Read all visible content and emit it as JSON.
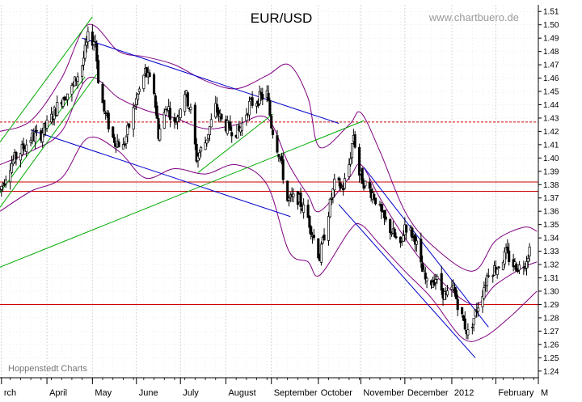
{
  "chart_data": {
    "type": "candlestick",
    "title": "EUR/USD",
    "watermark": "www.chartbuero.de",
    "credit": "Hoppenstedt Charts",
    "xlabel": "",
    "ylabel": "",
    "ylim": [
      1.235,
      1.515
    ],
    "grid": true,
    "y_axis_side": "right",
    "y_ticks": [
      "1.24",
      "1.25",
      "1.26",
      "1.27",
      "1.28",
      "1.29",
      "1.30",
      "1.31",
      "1.32",
      "1.33",
      "1.34",
      "1.35",
      "1.36",
      "1.37",
      "1.38",
      "1.39",
      "1.40",
      "1.41",
      "1.42",
      "1.43",
      "1.44",
      "1.45",
      "1.46",
      "1.47",
      "1.48",
      "1.49",
      "1.50",
      "1.51"
    ],
    "x_tick_labels": [
      {
        "label": "rch",
        "date": "2011-03-01"
      },
      {
        "label": "April",
        "date": "2011-04-01"
      },
      {
        "label": "May",
        "date": "2011-05-02"
      },
      {
        "label": "June",
        "date": "2011-06-01"
      },
      {
        "label": "July",
        "date": "2011-07-01"
      },
      {
        "label": "August",
        "date": "2011-08-01"
      },
      {
        "label": "September",
        "date": "2011-09-01"
      },
      {
        "label": "October",
        "date": "2011-10-03"
      },
      {
        "label": "November",
        "date": "2011-11-01"
      },
      {
        "label": "December",
        "date": "2011-12-01"
      },
      {
        "label": "2012",
        "date": "2012-01-02"
      },
      {
        "label": "February",
        "date": "2012-02-01"
      },
      {
        "label": "M",
        "date": "2012-03-01"
      }
    ],
    "x_range": [
      "2011-02-28",
      "2012-03-01"
    ],
    "price_path": [
      [
        "2011-02-28",
        1.376
      ],
      [
        "2011-03-07",
        1.395
      ],
      [
        "2011-03-14",
        1.405
      ],
      [
        "2011-03-21",
        1.415
      ],
      [
        "2011-03-28",
        1.418
      ],
      [
        "2011-04-04",
        1.43
      ],
      [
        "2011-04-11",
        1.445
      ],
      [
        "2011-04-18",
        1.452
      ],
      [
        "2011-04-25",
        1.47
      ],
      [
        "2011-04-29",
        1.49
      ],
      [
        "2011-05-04",
        1.488
      ],
      [
        "2011-05-06",
        1.46
      ],
      [
        "2011-05-10",
        1.435
      ],
      [
        "2011-05-16",
        1.415
      ],
      [
        "2011-05-23",
        1.408
      ],
      [
        "2011-05-31",
        1.44
      ],
      [
        "2011-06-07",
        1.465
      ],
      [
        "2011-06-13",
        1.45
      ],
      [
        "2011-06-16",
        1.418
      ],
      [
        "2011-06-22",
        1.44
      ],
      [
        "2011-06-27",
        1.425
      ],
      [
        "2011-07-04",
        1.45
      ],
      [
        "2011-07-08",
        1.435
      ],
      [
        "2011-07-12",
        1.4
      ],
      [
        "2011-07-18",
        1.412
      ],
      [
        "2011-07-25",
        1.438
      ],
      [
        "2011-07-29",
        1.428
      ],
      [
        "2011-08-03",
        1.422
      ],
      [
        "2011-08-10",
        1.42
      ],
      [
        "2011-08-17",
        1.44
      ],
      [
        "2011-08-24",
        1.445
      ],
      [
        "2011-08-29",
        1.448
      ],
      [
        "2011-09-01",
        1.425
      ],
      [
        "2011-09-07",
        1.4
      ],
      [
        "2011-09-12",
        1.368
      ],
      [
        "2011-09-19",
        1.37
      ],
      [
        "2011-09-26",
        1.355
      ],
      [
        "2011-10-04",
        1.325
      ],
      [
        "2011-10-10",
        1.36
      ],
      [
        "2011-10-14",
        1.38
      ],
      [
        "2011-10-20",
        1.378
      ],
      [
        "2011-10-24",
        1.395
      ],
      [
        "2011-10-27",
        1.418
      ],
      [
        "2011-10-31",
        1.388
      ],
      [
        "2011-11-04",
        1.38
      ],
      [
        "2011-11-10",
        1.372
      ],
      [
        "2011-11-16",
        1.355
      ],
      [
        "2011-11-22",
        1.345
      ],
      [
        "2011-11-28",
        1.332
      ],
      [
        "2011-12-01",
        1.35
      ],
      [
        "2011-12-08",
        1.34
      ],
      [
        "2011-12-12",
        1.318
      ],
      [
        "2011-12-16",
        1.305
      ],
      [
        "2011-12-22",
        1.31
      ],
      [
        "2011-12-29",
        1.295
      ],
      [
        "2012-01-03",
        1.302
      ],
      [
        "2012-01-09",
        1.28
      ],
      [
        "2012-01-13",
        1.268
      ],
      [
        "2012-01-17",
        1.28
      ],
      [
        "2012-01-23",
        1.3
      ],
      [
        "2012-01-27",
        1.315
      ],
      [
        "2012-02-02",
        1.318
      ],
      [
        "2012-02-08",
        1.328
      ],
      [
        "2012-02-13",
        1.32
      ],
      [
        "2012-02-17",
        1.318
      ],
      [
        "2012-02-21",
        1.322
      ],
      [
        "2012-02-24",
        1.332
      ]
    ],
    "overlays": {
      "bollinger": {
        "upper": [
          [
            "2011-02-28",
            1.42
          ],
          [
            "2011-03-21",
            1.428
          ],
          [
            "2011-04-11",
            1.46
          ],
          [
            "2011-04-29",
            1.5
          ],
          [
            "2011-05-20",
            1.48
          ],
          [
            "2011-06-07",
            1.476
          ],
          [
            "2011-06-27",
            1.47
          ],
          [
            "2011-07-18",
            1.458
          ],
          [
            "2011-08-08",
            1.452
          ],
          [
            "2011-08-29",
            1.462
          ],
          [
            "2011-09-13",
            1.47
          ],
          [
            "2011-09-26",
            1.445
          ],
          [
            "2011-10-04",
            1.408
          ],
          [
            "2011-10-24",
            1.425
          ],
          [
            "2011-11-01",
            1.434
          ],
          [
            "2011-11-14",
            1.405
          ],
          [
            "2011-12-01",
            1.36
          ],
          [
            "2011-12-19",
            1.335
          ],
          [
            "2012-01-16",
            1.315
          ],
          [
            "2012-02-01",
            1.338
          ],
          [
            "2012-02-20",
            1.348
          ],
          [
            "2012-02-29",
            1.345
          ]
        ],
        "middle": [
          [
            "2011-02-28",
            1.395
          ],
          [
            "2011-03-21",
            1.405
          ],
          [
            "2011-04-11",
            1.42
          ],
          [
            "2011-04-29",
            1.46
          ],
          [
            "2011-05-20",
            1.445
          ],
          [
            "2011-06-07",
            1.436
          ],
          [
            "2011-06-27",
            1.43
          ],
          [
            "2011-07-18",
            1.422
          ],
          [
            "2011-08-08",
            1.425
          ],
          [
            "2011-08-29",
            1.43
          ],
          [
            "2011-09-13",
            1.395
          ],
          [
            "2011-09-26",
            1.372
          ],
          [
            "2011-10-04",
            1.36
          ],
          [
            "2011-10-24",
            1.385
          ],
          [
            "2011-11-01",
            1.395
          ],
          [
            "2011-11-14",
            1.37
          ],
          [
            "2011-12-01",
            1.34
          ],
          [
            "2011-12-19",
            1.315
          ],
          [
            "2012-01-16",
            1.29
          ],
          [
            "2012-02-01",
            1.305
          ],
          [
            "2012-02-20",
            1.318
          ],
          [
            "2012-02-29",
            1.322
          ]
        ],
        "lower": [
          [
            "2011-02-28",
            1.36
          ],
          [
            "2011-03-21",
            1.375
          ],
          [
            "2011-04-11",
            1.385
          ],
          [
            "2011-04-29",
            1.415
          ],
          [
            "2011-05-20",
            1.405
          ],
          [
            "2011-06-07",
            1.385
          ],
          [
            "2011-06-27",
            1.392
          ],
          [
            "2011-07-18",
            1.388
          ],
          [
            "2011-08-08",
            1.395
          ],
          [
            "2011-08-29",
            1.38
          ],
          [
            "2011-09-13",
            1.33
          ],
          [
            "2011-09-26",
            1.322
          ],
          [
            "2011-10-04",
            1.312
          ],
          [
            "2011-10-24",
            1.345
          ],
          [
            "2011-11-01",
            1.35
          ],
          [
            "2011-11-14",
            1.335
          ],
          [
            "2011-12-01",
            1.315
          ],
          [
            "2011-12-19",
            1.295
          ],
          [
            "2012-01-09",
            1.265
          ],
          [
            "2012-01-23",
            1.265
          ],
          [
            "2012-02-10",
            1.28
          ],
          [
            "2012-02-29",
            1.3
          ]
        ]
      },
      "horizontal_lines": [
        {
          "value": 1.427,
          "color": "#cc0000",
          "style": "dashed"
        },
        {
          "value": 1.382,
          "color": "#cc0000",
          "style": "solid"
        },
        {
          "value": 1.375,
          "color": "#cc0000",
          "style": "solid"
        },
        {
          "value": 1.29,
          "color": "#cc0000",
          "style": "solid"
        }
      ],
      "trendlines": [
        {
          "color": "#0000cc",
          "points": [
            [
              "2011-04-25",
              1.49
            ],
            [
              "2011-10-17",
              1.426
            ]
          ]
        },
        {
          "color": "#0000cc",
          "points": [
            [
              "2011-03-21",
              1.421
            ],
            [
              "2011-09-14",
              1.356
            ]
          ]
        },
        {
          "color": "#0000cc",
          "points": [
            [
              "2011-11-03",
              1.393
            ],
            [
              "2012-01-27",
              1.273
            ]
          ]
        },
        {
          "color": "#0000cc",
          "points": [
            [
              "2011-10-17",
              1.365
            ],
            [
              "2012-01-18",
              1.25
            ]
          ]
        },
        {
          "color": "#00aa00",
          "points": [
            [
              "2011-02-28",
              1.412
            ],
            [
              "2011-05-02",
              1.506
            ]
          ]
        },
        {
          "color": "#00aa00",
          "points": [
            [
              "2011-02-28",
              1.374
            ],
            [
              "2011-04-27",
              1.461
            ]
          ]
        },
        {
          "color": "#00aa00",
          "points": [
            [
              "2011-02-28",
              1.363
            ],
            [
              "2011-05-05",
              1.463
            ]
          ]
        },
        {
          "color": "#00aa00",
          "points": [
            [
              "2011-02-28",
              1.318
            ],
            [
              "2011-11-03",
              1.428
            ]
          ]
        },
        {
          "color": "#00aa00",
          "points": [
            [
              "2011-07-13",
              1.389
            ],
            [
              "2011-09-02",
              1.433
            ]
          ]
        }
      ]
    },
    "colors": {
      "candle": "#000000",
      "bollinger": "#800080",
      "grid": "#c8c8c8",
      "frame": "#000000",
      "channel_down": "#0000cc",
      "channel_up": "#00aa00",
      "levels": "#cc0000"
    }
  }
}
